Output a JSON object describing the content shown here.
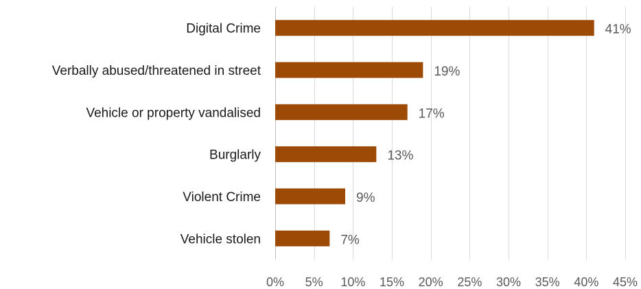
{
  "chart_data": {
    "type": "bar",
    "orientation": "horizontal",
    "categories": [
      "Digital Crime",
      "Verbally abused/threatened in street",
      "Vehicle or property vandalised",
      "Burglarly",
      "Violent Crime",
      "Vehicle stolen"
    ],
    "values": [
      41,
      19,
      17,
      13,
      9,
      7
    ],
    "data_labels": [
      "41%",
      "19%",
      "17%",
      "13%",
      "9%",
      "7%"
    ],
    "xlim": [
      0,
      45
    ],
    "x_ticks": [
      0,
      5,
      10,
      15,
      20,
      25,
      30,
      35,
      40,
      45
    ],
    "x_tick_labels": [
      "0%",
      "5%",
      "10%",
      "15%",
      "20%",
      "25%",
      "30%",
      "35%",
      "40%",
      "45%"
    ],
    "title": "",
    "xlabel": "",
    "ylabel": "",
    "grid": "vertical",
    "legend": "none",
    "bar_color": "#9C4A05"
  }
}
